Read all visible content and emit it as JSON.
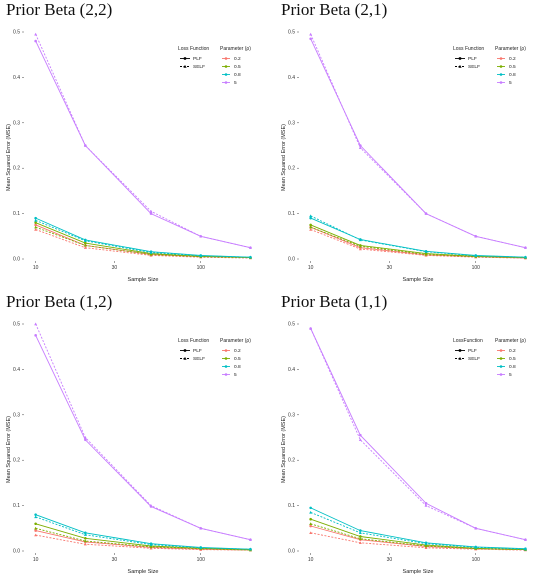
{
  "shared": {
    "xlabel": "Sample Size",
    "ylabel": "Mean Squared Error (MSE)",
    "x_tick_labels": [
      "10",
      "30",
      "100"
    ],
    "y_tick_labels": [
      "0.0",
      "0.1",
      "0.2",
      "0.3",
      "0.4",
      "0.5"
    ],
    "legend_loss_titles": [
      "Loss Function",
      "Loss Function",
      "Loss Function",
      "LossFunction"
    ],
    "legend_param_title": "Parameter (ρ)",
    "loss_functions": [
      "PLF",
      "SELF"
    ],
    "parameters": [
      "0.2",
      "0.5",
      "0.8",
      "5"
    ],
    "colors": {
      "0.2": "#F8766D",
      "0.5": "#7CAE00",
      "0.8": "#00BFC4",
      "5": "#C77CFF"
    }
  },
  "chart_data": [
    {
      "type": "line",
      "title": "Prior Beta (2,2)",
      "xlabel": "Sample Size",
      "ylabel": "Mean Squared Error (MSE)",
      "x_scale": "log",
      "x": [
        10,
        20,
        50,
        100,
        200
      ],
      "ylim": [
        0,
        0.5
      ],
      "legend_position": "top-right",
      "series": [
        {
          "loss": "PLF",
          "param": "0.2",
          "values": [
            0.075,
            0.03,
            0.01,
            0.005,
            0.003
          ]
        },
        {
          "loss": "SELF",
          "param": "0.2",
          "values": [
            0.065,
            0.025,
            0.008,
            0.004,
            0.002
          ]
        },
        {
          "loss": "PLF",
          "param": "0.5",
          "values": [
            0.08,
            0.035,
            0.012,
            0.006,
            0.003
          ]
        },
        {
          "loss": "SELF",
          "param": "0.5",
          "values": [
            0.07,
            0.03,
            0.01,
            0.005,
            0.003
          ]
        },
        {
          "loss": "PLF",
          "param": "0.8",
          "values": [
            0.09,
            0.042,
            0.016,
            0.008,
            0.004
          ]
        },
        {
          "loss": "SELF",
          "param": "0.8",
          "values": [
            0.085,
            0.04,
            0.014,
            0.007,
            0.004
          ]
        },
        {
          "loss": "PLF",
          "param": "5",
          "values": [
            0.48,
            0.25,
            0.1,
            0.05,
            0.025
          ]
        },
        {
          "loss": "SELF",
          "param": "5",
          "values": [
            0.495,
            0.25,
            0.105,
            0.05,
            0.025
          ]
        }
      ]
    },
    {
      "type": "line",
      "title": "Prior Beta (2,1)",
      "xlabel": "Sample Size",
      "ylabel": "Mean Squared Error (MSE)",
      "x_scale": "log",
      "x": [
        10,
        20,
        50,
        100,
        200
      ],
      "ylim": [
        0,
        0.5
      ],
      "legend_position": "top-right",
      "series": [
        {
          "loss": "PLF",
          "param": "0.2",
          "values": [
            0.07,
            0.025,
            0.009,
            0.005,
            0.002
          ]
        },
        {
          "loss": "SELF",
          "param": "0.2",
          "values": [
            0.065,
            0.022,
            0.008,
            0.004,
            0.002
          ]
        },
        {
          "loss": "PLF",
          "param": "0.5",
          "values": [
            0.075,
            0.03,
            0.012,
            0.006,
            0.003
          ]
        },
        {
          "loss": "SELF",
          "param": "0.5",
          "values": [
            0.07,
            0.028,
            0.01,
            0.005,
            0.003
          ]
        },
        {
          "loss": "PLF",
          "param": "0.8",
          "values": [
            0.09,
            0.043,
            0.017,
            0.008,
            0.004
          ]
        },
        {
          "loss": "SELF",
          "param": "0.8",
          "values": [
            0.095,
            0.042,
            0.016,
            0.007,
            0.004
          ]
        },
        {
          "loss": "PLF",
          "param": "5",
          "values": [
            0.485,
            0.25,
            0.1,
            0.05,
            0.025
          ]
        },
        {
          "loss": "SELF",
          "param": "5",
          "values": [
            0.495,
            0.245,
            0.1,
            0.05,
            0.025
          ]
        }
      ]
    },
    {
      "type": "line",
      "title": "Prior Beta (1,2)",
      "xlabel": "Sample Size",
      "ylabel": "Mean Squared Error (MSE)",
      "x_scale": "log",
      "x": [
        10,
        20,
        50,
        100,
        200
      ],
      "ylim": [
        0,
        0.5
      ],
      "legend_position": "top-right",
      "series": [
        {
          "loss": "PLF",
          "param": "0.2",
          "values": [
            0.045,
            0.02,
            0.008,
            0.004,
            0.002
          ]
        },
        {
          "loss": "SELF",
          "param": "0.2",
          "values": [
            0.035,
            0.015,
            0.006,
            0.003,
            0.002
          ]
        },
        {
          "loss": "PLF",
          "param": "0.5",
          "values": [
            0.06,
            0.028,
            0.011,
            0.006,
            0.003
          ]
        },
        {
          "loss": "SELF",
          "param": "0.5",
          "values": [
            0.05,
            0.022,
            0.009,
            0.005,
            0.002
          ]
        },
        {
          "loss": "PLF",
          "param": "0.8",
          "values": [
            0.08,
            0.04,
            0.016,
            0.008,
            0.004
          ]
        },
        {
          "loss": "SELF",
          "param": "0.8",
          "values": [
            0.075,
            0.036,
            0.014,
            0.007,
            0.004
          ]
        },
        {
          "loss": "PLF",
          "param": "5",
          "values": [
            0.475,
            0.245,
            0.098,
            0.05,
            0.025
          ]
        },
        {
          "loss": "SELF",
          "param": "5",
          "values": [
            0.5,
            0.25,
            0.1,
            0.05,
            0.025
          ]
        }
      ]
    },
    {
      "type": "line",
      "title": "Prior Beta (1,1)",
      "xlabel": "Sample Size",
      "ylabel": "Mean Squared Error (MSE)",
      "x_scale": "log",
      "x": [
        10,
        20,
        50,
        100,
        200
      ],
      "ylim": [
        0,
        0.5
      ],
      "legend_position": "top-right",
      "series": [
        {
          "loss": "PLF",
          "param": "0.2",
          "values": [
            0.055,
            0.025,
            0.01,
            0.005,
            0.003
          ]
        },
        {
          "loss": "SELF",
          "param": "0.2",
          "values": [
            0.04,
            0.018,
            0.007,
            0.004,
            0.002
          ]
        },
        {
          "loss": "PLF",
          "param": "0.5",
          "values": [
            0.07,
            0.032,
            0.013,
            0.006,
            0.003
          ]
        },
        {
          "loss": "SELF",
          "param": "0.5",
          "values": [
            0.06,
            0.027,
            0.011,
            0.005,
            0.003
          ]
        },
        {
          "loss": "PLF",
          "param": "0.8",
          "values": [
            0.095,
            0.045,
            0.018,
            0.009,
            0.005
          ]
        },
        {
          "loss": "SELF",
          "param": "0.8",
          "values": [
            0.085,
            0.04,
            0.016,
            0.008,
            0.004
          ]
        },
        {
          "loss": "PLF",
          "param": "5",
          "values": [
            0.49,
            0.255,
            0.105,
            0.05,
            0.025
          ]
        },
        {
          "loss": "SELF",
          "param": "5",
          "values": [
            0.49,
            0.245,
            0.1,
            0.05,
            0.025
          ]
        }
      ]
    }
  ]
}
